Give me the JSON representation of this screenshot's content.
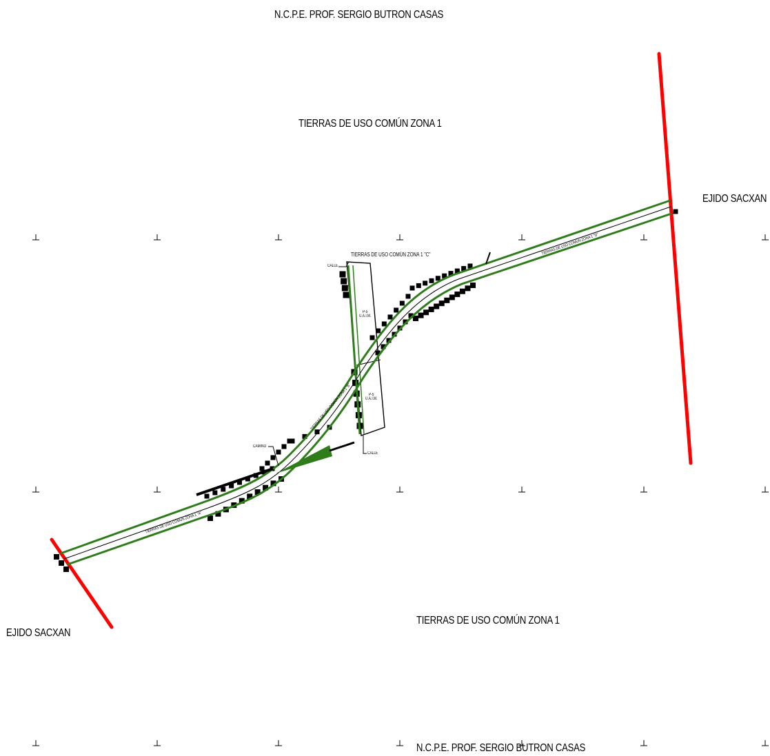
{
  "map": {
    "labels": {
      "top_neighbor": "N.C.P.E. PROF. SERGIO BUTRON CASAS",
      "bottom_neighbor": "N.C.P.E. PROF. SERGIO BUTRON CASAS",
      "zone_north": "TIERRAS DE USO COMÚN ZONA 1",
      "zone_south": "TIERRAS DE USO COMÚN ZONA 1",
      "ejido_east": "EJIDO SACXAN",
      "ejido_west": "EJIDO SACXAN",
      "zone_c": "TIERRAS DE USO COMÚN ZONA 1 \"C\"",
      "strip_a": "TIERRAS DE USO COMÚN ZONA 1 \"A\"",
      "strip_d": "TIERRAS DE USO COMÚN ZONA 1 \"D\"",
      "strip_b": "TIERRAS DE USO COMÚN ZONA 1 \"B\"",
      "calle_top": "CALLE",
      "calle_bottom": "CALLE",
      "camino": "CAMINO",
      "lot_upper": "P-5\nU.A.I.M.",
      "lot_lower": "P-5\nU.A.I.M."
    },
    "colors": {
      "boundary": "#ff0000",
      "road": "#2e7d1a",
      "ink": "#000000",
      "background": "#ffffff"
    },
    "icons": [
      "grid-tick-icon",
      "building-marker-icon"
    ]
  }
}
